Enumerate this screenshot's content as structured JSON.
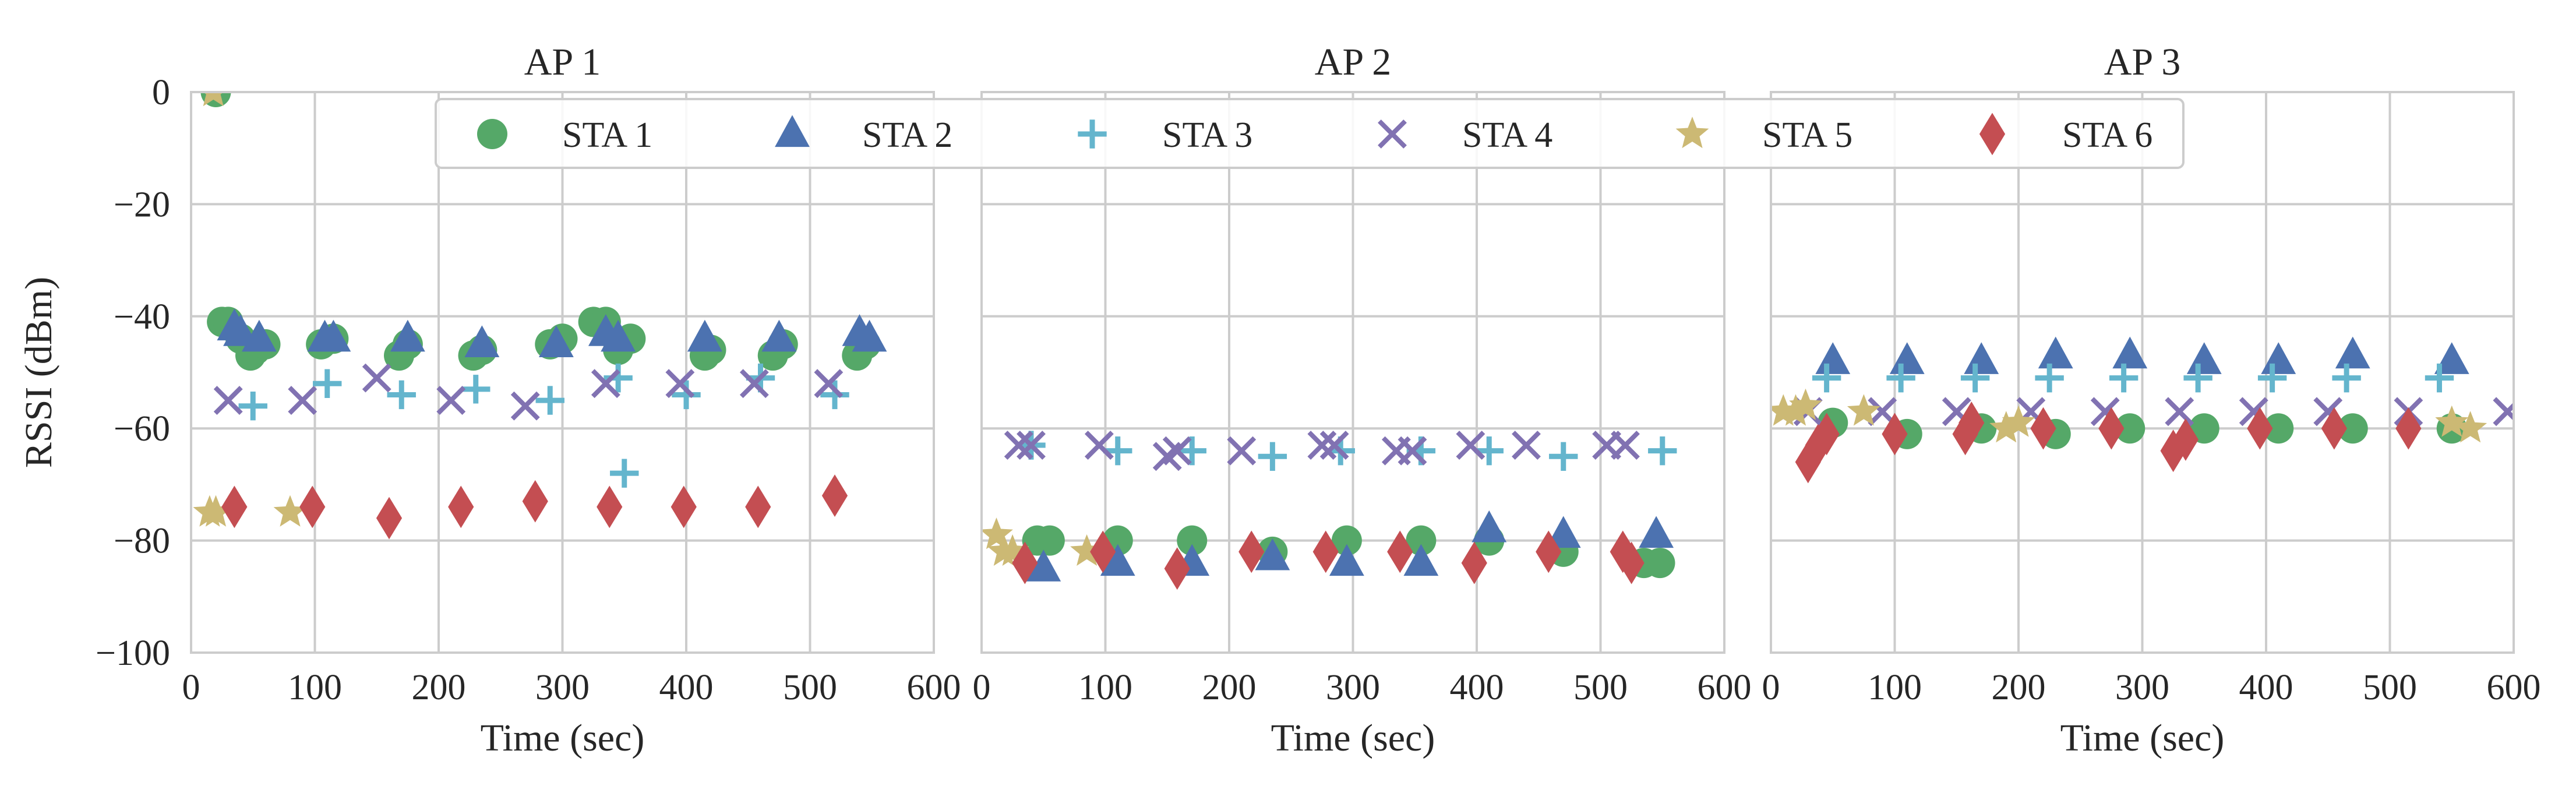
{
  "chart_data": {
    "type": "scatter",
    "ylabel": "RSSI (dBm)",
    "xlabel": "Time (sec)",
    "xlim": [
      0,
      600
    ],
    "ylim": [
      -100,
      0
    ],
    "xticks": [
      0,
      100,
      200,
      300,
      400,
      500,
      600
    ],
    "yticks": [
      0,
      -20,
      -40,
      -60,
      -80,
      -100
    ],
    "xtick_labels": [
      "0",
      "100",
      "200",
      "300",
      "400",
      "500",
      "600"
    ],
    "ytick_labels": [
      "0",
      "−20",
      "−40",
      "−60",
      "−80",
      "−100"
    ],
    "grid": true,
    "legend": {
      "placement": "top-center",
      "ncols": 6
    },
    "series_styles": [
      {
        "name": "STA 1",
        "marker": "circle",
        "color": "#55A868"
      },
      {
        "name": "STA 2",
        "marker": "triangle",
        "color": "#4C72B0"
      },
      {
        "name": "STA 3",
        "marker": "plus",
        "color": "#64B5CD"
      },
      {
        "name": "STA 4",
        "marker": "x",
        "color": "#8172B2"
      },
      {
        "name": "STA 5",
        "marker": "star",
        "color": "#CCB974"
      },
      {
        "name": "STA 6",
        "marker": "diamond",
        "color": "#C44E52"
      }
    ],
    "panels": [
      {
        "title": "AP 1",
        "series": [
          {
            "name": "STA 1",
            "points": [
              [
                20,
                0
              ],
              [
                25,
                -41
              ],
              [
                30,
                -41
              ],
              [
                40,
                -44
              ],
              [
                48,
                -47
              ],
              [
                52,
                -46
              ],
              [
                60,
                -45
              ],
              [
                105,
                -45
              ],
              [
                115,
                -44
              ],
              [
                168,
                -47
              ],
              [
                175,
                -45
              ],
              [
                228,
                -47
              ],
              [
                235,
                -46
              ],
              [
                290,
                -45
              ],
              [
                300,
                -44
              ],
              [
                325,
                -41
              ],
              [
                335,
                -41
              ],
              [
                345,
                -46
              ],
              [
                355,
                -44
              ],
              [
                415,
                -47
              ],
              [
                420,
                -46
              ],
              [
                470,
                -47
              ],
              [
                478,
                -45
              ],
              [
                538,
                -47
              ],
              [
                545,
                -45
              ]
            ]
          },
          {
            "name": "STA 2",
            "points": [
              [
                35,
                -42
              ],
              [
                40,
                -43
              ],
              [
                55,
                -44
              ],
              [
                108,
                -44
              ],
              [
                115,
                -44
              ],
              [
                175,
                -44
              ],
              [
                235,
                -45
              ],
              [
                295,
                -45
              ],
              [
                335,
                -43
              ],
              [
                345,
                -44
              ],
              [
                415,
                -44
              ],
              [
                475,
                -44
              ],
              [
                540,
                -43
              ],
              [
                548,
                -44
              ]
            ]
          },
          {
            "name": "STA 3",
            "points": [
              [
                50,
                -56
              ],
              [
                110,
                -52
              ],
              [
                170,
                -54
              ],
              [
                230,
                -53
              ],
              [
                290,
                -55
              ],
              [
                345,
                -51
              ],
              [
                350,
                -68
              ],
              [
                400,
                -54
              ],
              [
                460,
                -51
              ],
              [
                520,
                -54
              ]
            ]
          },
          {
            "name": "STA 4",
            "points": [
              [
                30,
                -55
              ],
              [
                90,
                -55
              ],
              [
                150,
                -51
              ],
              [
                210,
                -55
              ],
              [
                270,
                -56
              ],
              [
                335,
                -52
              ],
              [
                395,
                -52
              ],
              [
                455,
                -52
              ],
              [
                515,
                -52
              ]
            ]
          },
          {
            "name": "STA 5",
            "points": [
              [
                15,
                -75
              ],
              [
                20,
                -75
              ],
              [
                80,
                -75
              ],
              [
                18,
                0
              ]
            ]
          },
          {
            "name": "STA 6",
            "points": [
              [
                35,
                -74
              ],
              [
                98,
                -74
              ],
              [
                160,
                -76
              ],
              [
                218,
                -74
              ],
              [
                278,
                -73
              ],
              [
                338,
                -74
              ],
              [
                398,
                -74
              ],
              [
                458,
                -74
              ],
              [
                520,
                -72
              ]
            ]
          }
        ]
      },
      {
        "title": "AP 2",
        "series": [
          {
            "name": "STA 1",
            "points": [
              [
                45,
                -80
              ],
              [
                55,
                -80
              ],
              [
                110,
                -80
              ],
              [
                170,
                -80
              ],
              [
                235,
                -82
              ],
              [
                295,
                -80
              ],
              [
                355,
                -80
              ],
              [
                410,
                -80
              ],
              [
                470,
                -82
              ],
              [
                535,
                -84
              ],
              [
                548,
                -84
              ]
            ]
          },
          {
            "name": "STA 2",
            "points": [
              [
                50,
                -85
              ],
              [
                110,
                -84
              ],
              [
                170,
                -84
              ],
              [
                235,
                -83
              ],
              [
                295,
                -84
              ],
              [
                355,
                -84
              ],
              [
                410,
                -78
              ],
              [
                470,
                -79
              ],
              [
                545,
                -79
              ]
            ]
          },
          {
            "name": "STA 3",
            "points": [
              [
                40,
                -63
              ],
              [
                110,
                -64
              ],
              [
                170,
                -64
              ],
              [
                235,
                -65
              ],
              [
                290,
                -64
              ],
              [
                355,
                -64
              ],
              [
                410,
                -64
              ],
              [
                470,
                -65
              ],
              [
                550,
                -64
              ]
            ]
          },
          {
            "name": "STA 4",
            "points": [
              [
                30,
                -63
              ],
              [
                40,
                -63
              ],
              [
                95,
                -63
              ],
              [
                150,
                -65
              ],
              [
                158,
                -64
              ],
              [
                210,
                -64
              ],
              [
                275,
                -63
              ],
              [
                285,
                -63
              ],
              [
                335,
                -64
              ],
              [
                348,
                -64
              ],
              [
                395,
                -63
              ],
              [
                440,
                -63
              ],
              [
                505,
                -63
              ],
              [
                520,
                -63
              ]
            ]
          },
          {
            "name": "STA 5",
            "points": [
              [
                12,
                -79
              ],
              [
                18,
                -82
              ],
              [
                25,
                -82
              ],
              [
                85,
                -82
              ]
            ]
          },
          {
            "name": "STA 6",
            "points": [
              [
                35,
                -84
              ],
              [
                98,
                -82
              ],
              [
                158,
                -85
              ],
              [
                218,
                -82
              ],
              [
                278,
                -82
              ],
              [
                338,
                -82
              ],
              [
                398,
                -84
              ],
              [
                458,
                -82
              ],
              [
                518,
                -82
              ],
              [
                525,
                -84
              ]
            ]
          }
        ]
      },
      {
        "title": "AP 3",
        "series": [
          {
            "name": "STA 1",
            "points": [
              [
                50,
                -59
              ],
              [
                110,
                -61
              ],
              [
                170,
                -60
              ],
              [
                230,
                -61
              ],
              [
                290,
                -60
              ],
              [
                350,
                -60
              ],
              [
                410,
                -60
              ],
              [
                470,
                -60
              ],
              [
                550,
                -60
              ]
            ]
          },
          {
            "name": "STA 2",
            "points": [
              [
                50,
                -48
              ],
              [
                110,
                -48
              ],
              [
                170,
                -48
              ],
              [
                230,
                -47
              ],
              [
                290,
                -47
              ],
              [
                350,
                -48
              ],
              [
                410,
                -48
              ],
              [
                470,
                -47
              ],
              [
                550,
                -48
              ]
            ]
          },
          {
            "name": "STA 3",
            "points": [
              [
                45,
                -51
              ],
              [
                105,
                -51
              ],
              [
                165,
                -51
              ],
              [
                225,
                -51
              ],
              [
                285,
                -51
              ],
              [
                345,
                -51
              ],
              [
                405,
                -51
              ],
              [
                465,
                -51
              ],
              [
                540,
                -51
              ]
            ]
          },
          {
            "name": "STA 4",
            "points": [
              [
                30,
                -57
              ],
              [
                90,
                -57
              ],
              [
                150,
                -57
              ],
              [
                210,
                -57
              ],
              [
                270,
                -57
              ],
              [
                330,
                -57
              ],
              [
                390,
                -57
              ],
              [
                450,
                -57
              ],
              [
                515,
                -57
              ],
              [
                595,
                -57
              ]
            ]
          },
          {
            "name": "STA 5",
            "points": [
              [
                10,
                -57
              ],
              [
                20,
                -57
              ],
              [
                28,
                -56
              ],
              [
                75,
                -57
              ],
              [
                190,
                -60
              ],
              [
                200,
                -59
              ],
              [
                550,
                -59
              ],
              [
                565,
                -60
              ]
            ]
          },
          {
            "name": "STA 6",
            "points": [
              [
                30,
                -66
              ],
              [
                38,
                -63
              ],
              [
                45,
                -61
              ],
              [
                100,
                -61
              ],
              [
                157,
                -61
              ],
              [
                162,
                -59
              ],
              [
                220,
                -60
              ],
              [
                275,
                -60
              ],
              [
                325,
                -64
              ],
              [
                335,
                -62
              ],
              [
                395,
                -60
              ],
              [
                455,
                -60
              ],
              [
                515,
                -60
              ]
            ]
          }
        ]
      }
    ]
  }
}
